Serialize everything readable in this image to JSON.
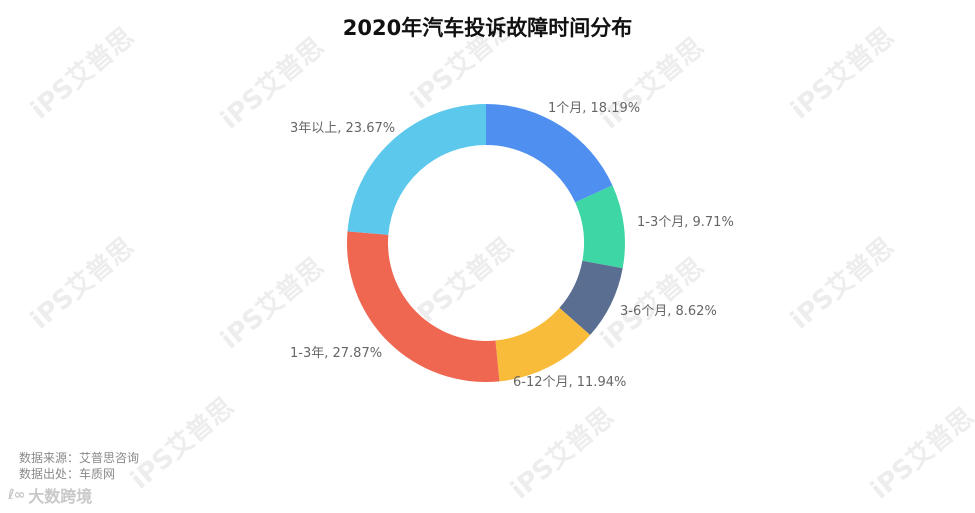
{
  "chart_data": {
    "type": "pie",
    "title": "2020年汽车投诉故障时间分布",
    "categories": [
      "1个月",
      "1-3个月",
      "3-6个月",
      "6-12个月",
      "1-3年",
      "3年以上"
    ],
    "values": [
      18.19,
      9.71,
      8.62,
      11.94,
      27.87,
      23.67
    ],
    "labels": [
      "1个月, 18.19%",
      "1-3个月, 9.71%",
      "3-6个月, 8.62%",
      "6-12个月, 11.94%",
      "1-3年, 27.87%",
      "3年以上, 23.67%"
    ],
    "colors": [
      "#4e8ff0",
      "#3fd6a5",
      "#5a6e91",
      "#f9bc3a",
      "#ef6651",
      "#5bc8ec"
    ],
    "donut": true
  },
  "source": {
    "line1": "数据来源：艾普思咨询",
    "line2": "数据出处：车质网"
  },
  "brand": {
    "mark": "ℓ∞",
    "name": "大数跨境"
  },
  "watermark": {
    "text": "iPS艾普思"
  }
}
